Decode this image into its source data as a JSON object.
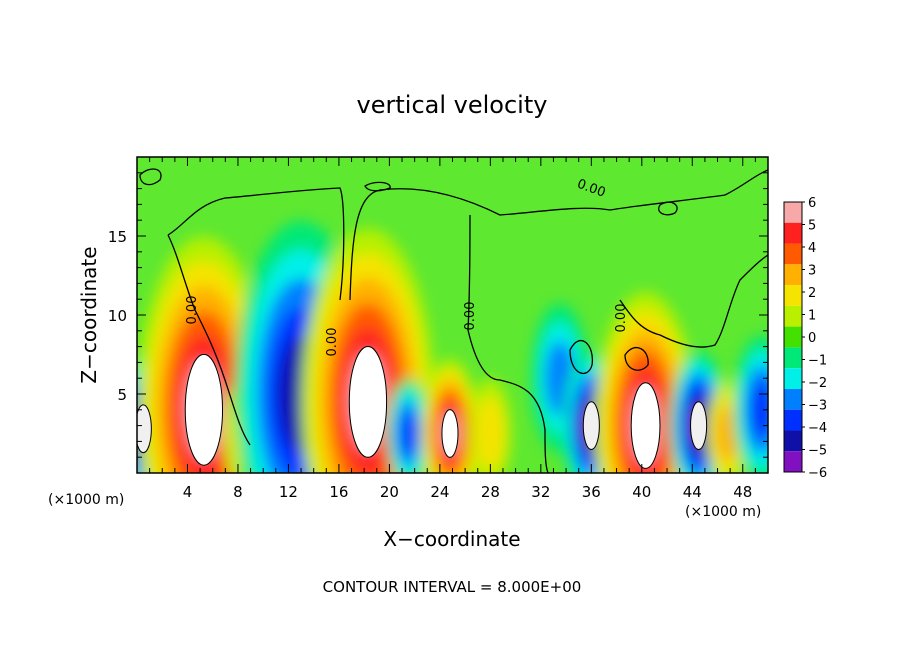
{
  "chart_data": {
    "type": "heatmap",
    "title": "vertical velocity",
    "xlabel": "X−coordinate",
    "ylabel": "Z−coordinate",
    "x_unit_left": "(×1000 m)",
    "x_unit_right": "(×1000 m)",
    "footer": "CONTOUR INTERVAL = 8.000E+00",
    "xlim": [
      0,
      50
    ],
    "ylim": [
      0,
      20
    ],
    "xticks": [
      "4",
      "8",
      "12",
      "16",
      "20",
      "24",
      "28",
      "32",
      "36",
      "40",
      "44",
      "48"
    ],
    "yticks": [
      "5",
      "10",
      "15"
    ],
    "colorbar": {
      "range": [
        -6,
        6
      ],
      "labels": [
        "6",
        "5",
        "4",
        "3",
        "2",
        "1",
        "0",
        "−1",
        "−2",
        "−3",
        "−4",
        "−5",
        "−6"
      ],
      "colors": [
        "#f7a8a8",
        "#ff2020",
        "#ff5a00",
        "#ffb000",
        "#f5e300",
        "#b8f000",
        "#43e000",
        "#00e878",
        "#00f0e8",
        "#0080ff",
        "#0030ff",
        "#1010a8",
        "#8010c0"
      ]
    },
    "contour_labels": [
      "0.00",
      "0.00",
      "0.00",
      "0.00",
      "0.00"
    ],
    "features": [
      {
        "x": 0.5,
        "z": 2.8,
        "w": 3,
        "peak": -6
      },
      {
        "x": 5.3,
        "z": 4.0,
        "w": 8,
        "peak": 6
      },
      {
        "x": 8.5,
        "z": 2.5,
        "w": 2,
        "peak": 2
      },
      {
        "x": 13.0,
        "z": 5.0,
        "w": 8,
        "peak": -5
      },
      {
        "x": 18.3,
        "z": 4.5,
        "w": 8,
        "peak": 6
      },
      {
        "x": 21.5,
        "z": 2.5,
        "w": 2,
        "peak": -4
      },
      {
        "x": 24.8,
        "z": 2.5,
        "w": 3,
        "peak": 6
      },
      {
        "x": 28.0,
        "z": 2.5,
        "w": 2,
        "peak": 2
      },
      {
        "x": 33.5,
        "z": 6.0,
        "w": 3,
        "peak": -3
      },
      {
        "x": 36.0,
        "z": 3.0,
        "w": 3,
        "peak": -6
      },
      {
        "x": 40.3,
        "z": 3.0,
        "w": 6,
        "peak": 6
      },
      {
        "x": 44.5,
        "z": 3.0,
        "w": 3,
        "peak": -6
      },
      {
        "x": 46.8,
        "z": 2.5,
        "w": 2,
        "peak": 3
      },
      {
        "x": 49.5,
        "z": 4.0,
        "w": 3,
        "peak": -4
      }
    ]
  }
}
